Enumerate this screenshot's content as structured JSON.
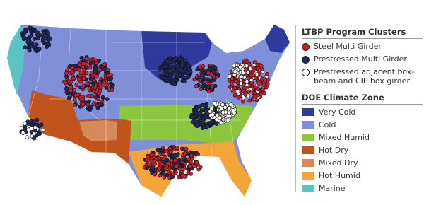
{
  "legend_clusters": {
    "title": "LTBP Program Clusters",
    "items": [
      {
        "label": "Steel Multi Girder",
        "color": "#c8202c"
      },
      {
        "label": "Prestressed Multi Girder",
        "color": "#1c2a5c"
      },
      {
        "label": "Prestressed adjacent box-beam and CIP box girder",
        "color": "#ffffff"
      }
    ]
  },
  "legend_climate": {
    "title": "DOE Climate Zone",
    "items": [
      {
        "label": "Very Cold",
        "color": "#2e3b9c"
      },
      {
        "label": "Cold",
        "color": "#7f8fd8"
      },
      {
        "label": "Mixed Humid",
        "color": "#8cc63f"
      },
      {
        "label": "Hot Dry",
        "color": "#c0541c"
      },
      {
        "label": "Mixed Dry",
        "color": "#d8895c"
      },
      {
        "label": "Hot Humid",
        "color": "#f4a53a"
      },
      {
        "label": "Marine",
        "color": "#5bc3c6"
      }
    ]
  }
}
